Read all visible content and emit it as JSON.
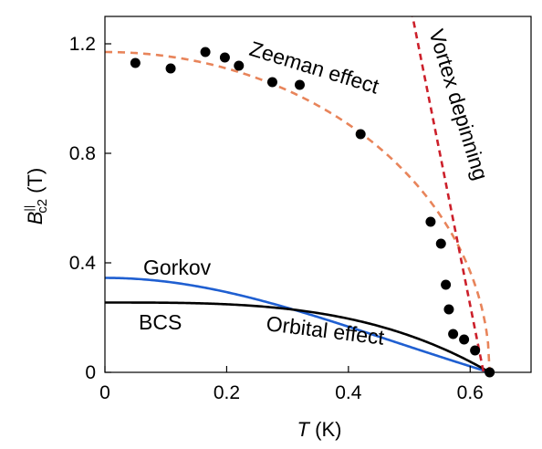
{
  "chart_data": {
    "type": "scatter",
    "xlabel": {
      "var": "T",
      "unit": " (K)"
    },
    "ylabel": {
      "var": "B",
      "sup": "||",
      "sub": "c2",
      "unit": " (T)"
    },
    "xlim": [
      0,
      0.7
    ],
    "ylim": [
      0,
      1.3
    ],
    "x_ticks": [
      0,
      0.2,
      0.4,
      0.6
    ],
    "x_tick_labels": [
      "0",
      "0.2",
      "0.4",
      "0.6"
    ],
    "y_ticks": [
      0,
      0.4,
      0.8,
      1.2
    ],
    "y_tick_labels": [
      "0",
      "0.4",
      "0.8",
      "1.2"
    ],
    "grid": false,
    "tc": 0.632,
    "series": [
      {
        "kind": "points",
        "color": "#000000",
        "x": [
          0.05,
          0.108,
          0.165,
          0.197,
          0.22,
          0.275,
          0.32,
          0.42,
          0.535,
          0.552,
          0.56,
          0.565,
          0.572,
          0.59,
          0.608,
          0.632
        ],
        "y": [
          1.13,
          1.11,
          1.17,
          1.15,
          1.12,
          1.06,
          1.05,
          0.87,
          0.55,
          0.47,
          0.32,
          0.23,
          0.14,
          0.12,
          0.08,
          0.0
        ]
      },
      {
        "kind": "zeeman",
        "name": "Zeeman effect",
        "color": "#e8845a",
        "dash": "8,6",
        "b0": 1.17
      },
      {
        "kind": "gorkov",
        "name": "Gorkov",
        "color": "#1f5fd1",
        "b0": 0.345
      },
      {
        "kind": "bcs",
        "name": "BCS",
        "color": "#000000",
        "b0": 0.255
      },
      {
        "kind": "vortex",
        "name": "Vortex depinning",
        "color": "#cc1f2a",
        "dash": "7,5",
        "x": [
          0.5,
          0.622
        ],
        "y": [
          1.36,
          0.0
        ]
      }
    ],
    "annotations": [
      {
        "id": "zeeman",
        "text": "Zeeman effect"
      },
      {
        "id": "vortex",
        "text": "Vortex depinning"
      },
      {
        "id": "gorkov",
        "text": "Gorkov"
      },
      {
        "id": "bcs",
        "text": "BCS"
      },
      {
        "id": "orbital",
        "text": "Orbital effect"
      }
    ]
  }
}
